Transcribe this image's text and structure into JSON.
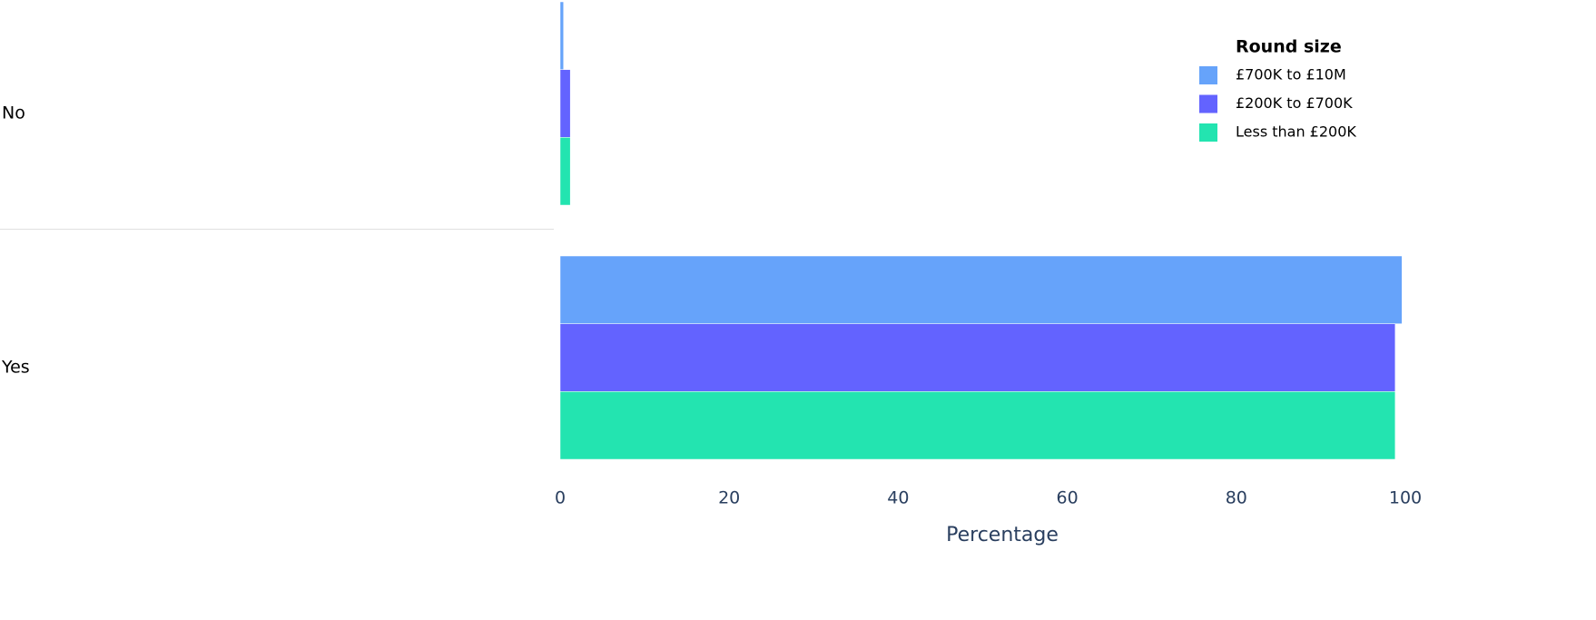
{
  "chart_data": {
    "type": "hbar",
    "categories": [
      "No",
      "Yes"
    ],
    "series": [
      {
        "name": "£700K to £10M",
        "color": "#66a3fa",
        "values": [
          0.4,
          99.6
        ]
      },
      {
        "name": "£200K to £700K",
        "color": "#6363ff",
        "values": [
          1.2,
          98.8
        ]
      },
      {
        "name": "Less than £200K",
        "color": "#23e4b0",
        "values": [
          1.2,
          98.8
        ]
      }
    ],
    "xlim": [
      0,
      100
    ],
    "xticks": [
      0,
      20,
      40,
      60,
      80,
      100
    ],
    "xlabel": "Percentage",
    "legend_title": "Round size",
    "legend_position": "top-right"
  }
}
